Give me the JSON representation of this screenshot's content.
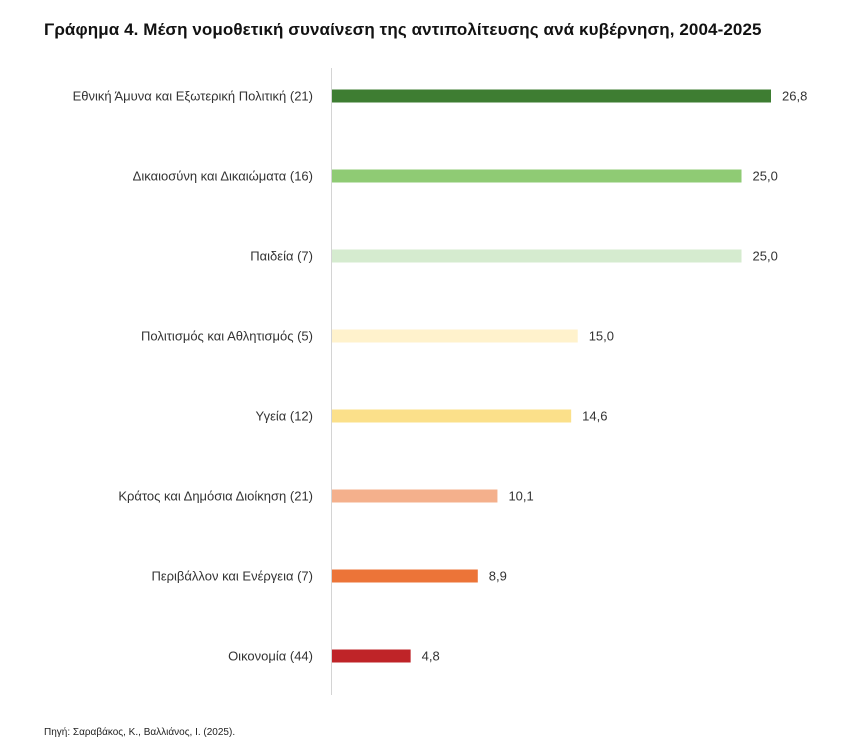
{
  "chart_data": {
    "type": "bar",
    "orientation": "horizontal",
    "title": "Γράφημα 4. Μέση νομοθετική συναίνεση της αντιπολίτευσης ανά κυβέρνηση, 2004-2025",
    "xlabel": "",
    "ylabel": "",
    "grid": false,
    "legend": "none",
    "xlim": [
      0,
      26.8
    ],
    "categories": [
      "Εθνική Άμυνα και Εξωτερική Πολιτική (21)",
      "Δικαιοσύνη και Δικαιώματα  (16)",
      "Παιδεία  (7)",
      "Πολιτισμός και Αθλητισμός (5)",
      "Υγεία (12)",
      "Κράτος και Δημόσια Διοίκηση  (21)",
      "Περιβάλλον και Ενέργεια (7)",
      "Οικονομία (44)"
    ],
    "values": [
      26.8,
      25.0,
      25.0,
      15.0,
      14.6,
      10.1,
      8.9,
      4.8
    ],
    "value_labels": [
      "26,8",
      "25,0",
      "25,0",
      "15,0",
      "14,6",
      "10,1",
      "8,9",
      "4,8"
    ],
    "colors": [
      "#3e7d32",
      "#8fcb74",
      "#d5ebcf",
      "#fff2cc",
      "#fbe08a",
      "#f4b08c",
      "#ec7438",
      "#bf2428"
    ]
  },
  "source": "Πηγή: Σαραβάκος, Κ., Βαλλιάνος, Ι. (2025)."
}
